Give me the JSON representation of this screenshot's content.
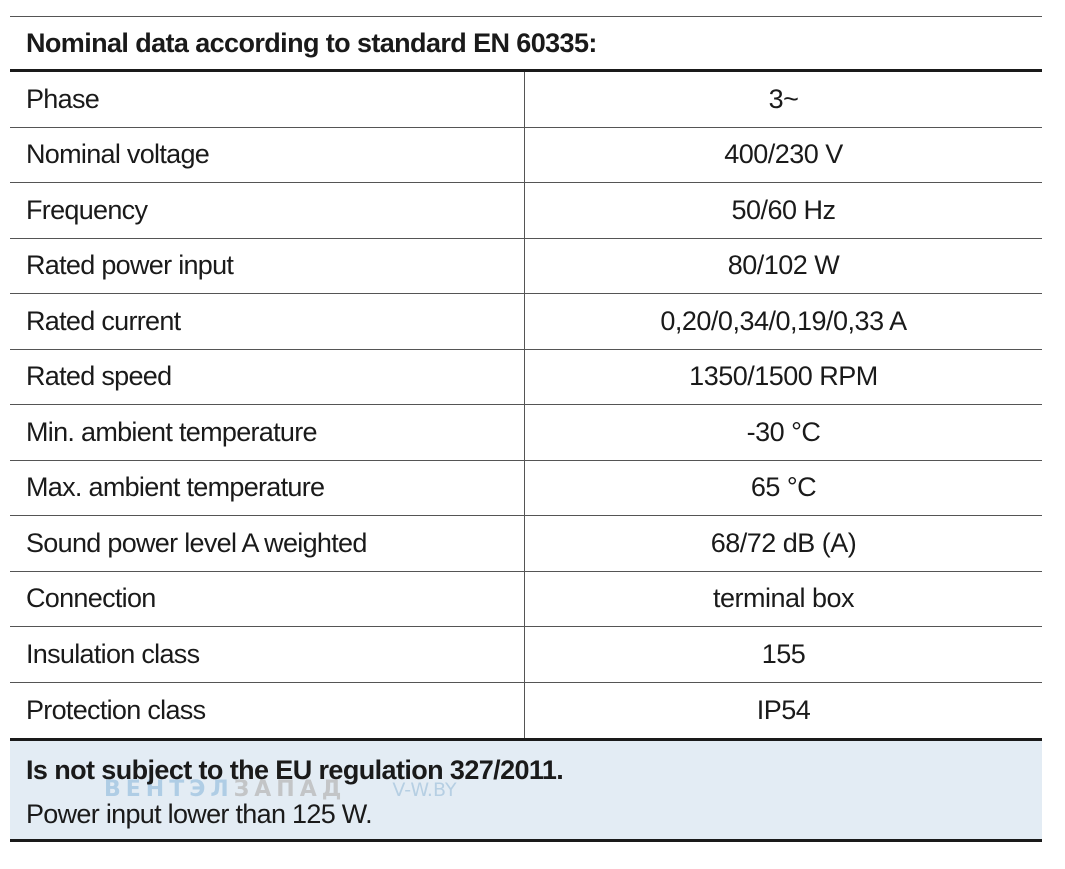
{
  "table": {
    "title": "Nominal data according to standard EN 60335:",
    "rows": [
      {
        "label": "Phase",
        "value": "3~"
      },
      {
        "label": "Nominal voltage",
        "value": "400/230 V"
      },
      {
        "label": "Frequency",
        "value": "50/60 Hz"
      },
      {
        "label": "Rated power input",
        "value": "80/102 W"
      },
      {
        "label": "Rated current",
        "value": "0,20/0,34/0,19/0,33 A"
      },
      {
        "label": "Rated speed",
        "value": "1350/1500 RPM"
      },
      {
        "label": "Min. ambient temperature",
        "value": "-30 °C"
      },
      {
        "label": "Max. ambient temperature",
        "value": "65 °C"
      },
      {
        "label": "Sound power level A weighted",
        "value": "68/72 dB (A)"
      },
      {
        "label": "Connection",
        "value": "terminal box"
      },
      {
        "label": "Insulation class",
        "value": "155"
      },
      {
        "label": "Protection class",
        "value": "IP54"
      }
    ]
  },
  "footer": {
    "title": "Is not subject to the EU regulation 327/2011.",
    "note": "Power input lower than 125 W."
  },
  "watermark": {
    "part1": "ВЕНТЭЛ",
    "part2": "ЗАПАД",
    "site": "V-W.BY"
  }
}
